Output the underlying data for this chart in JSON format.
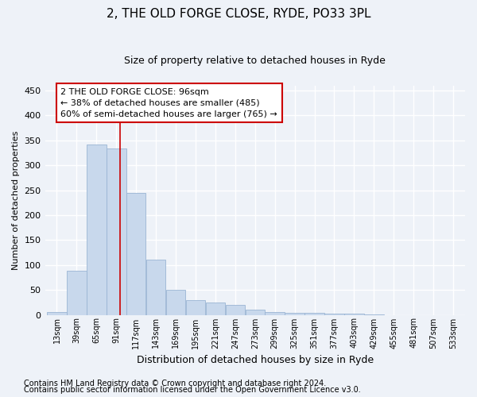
{
  "title": "2, THE OLD FORGE CLOSE, RYDE, PO33 3PL",
  "subtitle": "Size of property relative to detached houses in Ryde",
  "xlabel": "Distribution of detached houses by size in Ryde",
  "ylabel": "Number of detached properties",
  "footnote1": "Contains HM Land Registry data © Crown copyright and database right 2024.",
  "footnote2": "Contains public sector information licensed under the Open Government Licence v3.0.",
  "annotation_line1": "2 THE OLD FORGE CLOSE: 96sqm",
  "annotation_line2": "← 38% of detached houses are smaller (485)",
  "annotation_line3": "60% of semi-detached houses are larger (765) →",
  "bar_color": "#c8d8ec",
  "bar_edge_color": "#9ab5d4",
  "redline_color": "#cc0000",
  "redline_x": 96,
  "categories": [
    13,
    39,
    65,
    91,
    117,
    143,
    169,
    195,
    221,
    247,
    273,
    299,
    325,
    351,
    377,
    403,
    429,
    455,
    481,
    507,
    533
  ],
  "values": [
    5,
    88,
    342,
    334,
    244,
    110,
    50,
    30,
    25,
    20,
    10,
    6,
    4,
    4,
    3,
    2,
    1,
    0,
    0,
    0,
    0
  ],
  "bin_width": 26,
  "ylim": [
    0,
    460
  ],
  "yticks": [
    0,
    50,
    100,
    150,
    200,
    250,
    300,
    350,
    400,
    450
  ],
  "background_color": "#eef2f8",
  "plot_bg_color": "#eef2f8",
  "grid_color": "#ffffff",
  "annotation_box_color": "#ffffff",
  "annotation_box_edge": "#cc0000",
  "title_fontsize": 11,
  "subtitle_fontsize": 9,
  "ylabel_fontsize": 8,
  "xlabel_fontsize": 9,
  "tick_fontsize": 7,
  "footnote_fontsize": 7
}
